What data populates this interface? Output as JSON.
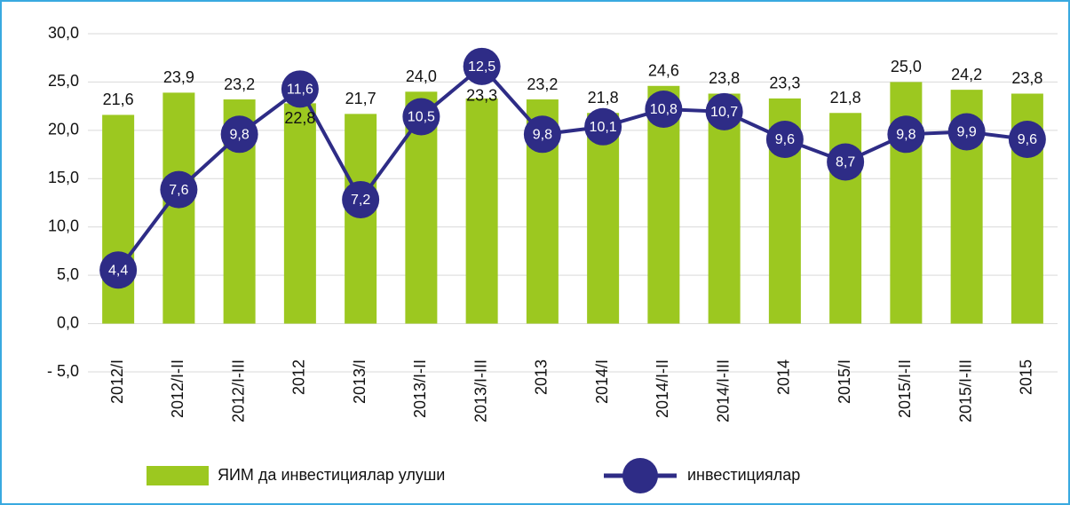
{
  "chart_data": {
    "type": "bar_line",
    "categories": [
      "2012/I",
      "2012/I-II",
      "2012/I-III",
      "2012",
      "2013/I",
      "2013/I-II",
      "2013/I-III",
      "2013",
      "2014/I",
      "2014/I-II",
      "2014/I-III",
      "2014",
      "2015/I",
      "2015/I-II",
      "2015/I-III",
      "2015"
    ],
    "series": [
      {
        "name": "ЯИМ да инвестициялар улуши",
        "type": "bar",
        "color": "#9cc820",
        "values": [
          21.6,
          23.9,
          23.2,
          22.8,
          21.7,
          24.0,
          23.3,
          23.2,
          21.8,
          24.6,
          23.8,
          23.3,
          21.8,
          25.0,
          24.2,
          23.8
        ],
        "value_labels": [
          "21,6",
          "23,9",
          "23,2",
          "22,8",
          "21,7",
          "24,0",
          "23,3",
          "23,2",
          "21,8",
          "24,6",
          "23,8",
          "23,3",
          "21,8",
          "25,0",
          "24,2",
          "23,8"
        ]
      },
      {
        "name": "инвестициялар",
        "type": "line",
        "axis": "y2",
        "color": "#2e2c86",
        "values": [
          4.4,
          7.6,
          9.8,
          11.6,
          7.2,
          10.5,
          12.5,
          9.8,
          10.1,
          10.8,
          10.7,
          9.6,
          8.7,
          9.8,
          9.9,
          9.6
        ],
        "value_labels": [
          "4,4",
          "7,6",
          "9,8",
          "11,6",
          "7,2",
          "10,5",
          "12,5",
          "9,8",
          "10,1",
          "10,8",
          "10,7",
          "9,6",
          "8,7",
          "9,8",
          "9,9",
          "9,6"
        ]
      }
    ],
    "ylim": [
      -5,
      30
    ],
    "yticks": [
      {
        "value": -5,
        "label": "- 5,0"
      },
      {
        "value": 0,
        "label": "0,0"
      },
      {
        "value": 5,
        "label": "5,0"
      },
      {
        "value": 10,
        "label": "10,0"
      },
      {
        "value": 15,
        "label": "15,0"
      },
      {
        "value": 20,
        "label": "20,0"
      },
      {
        "value": 25,
        "label": "25,0"
      },
      {
        "value": 30,
        "label": "30,0"
      }
    ],
    "y2lim": [
      0.35,
      13.8
    ],
    "grid": true
  }
}
